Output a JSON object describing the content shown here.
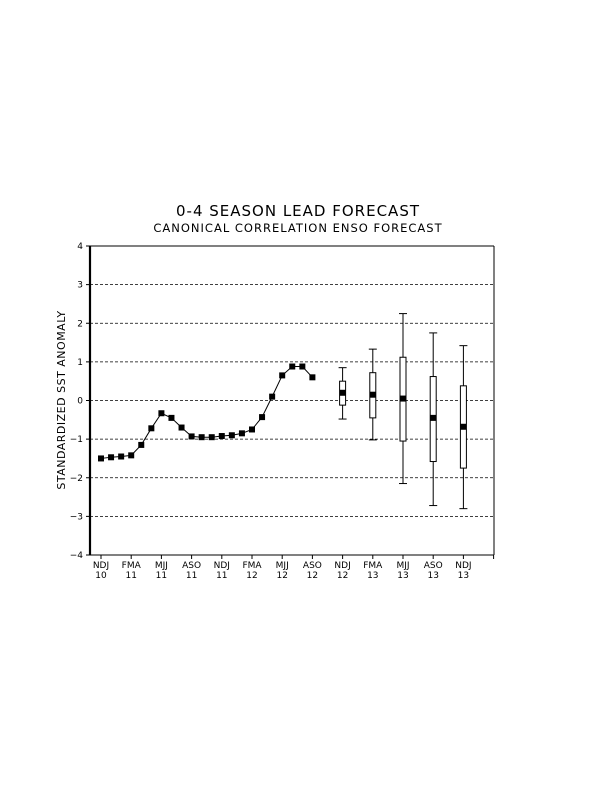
{
  "chart_data": {
    "type": "line",
    "title": "0-4 SEASON LEAD FORECAST",
    "subtitle": "CANONICAL CORRELATION ENSO FORECAST",
    "ylabel": "STANDARDIZED SST ANOMALY",
    "xlabel": "",
    "ylim": [
      -4,
      4
    ],
    "yticks": [
      -4,
      -3,
      -2,
      -1,
      0,
      1,
      2,
      3,
      4
    ],
    "grid": "horizontal dashed",
    "xticks": [
      {
        "season": "NDJ",
        "year": "10"
      },
      {
        "season": "FMA",
        "year": "11"
      },
      {
        "season": "MJJ",
        "year": "11"
      },
      {
        "season": "ASO",
        "year": "11"
      },
      {
        "season": "NDJ",
        "year": "11"
      },
      {
        "season": "FMA",
        "year": "12"
      },
      {
        "season": "MJJ",
        "year": "12"
      },
      {
        "season": "ASO",
        "year": "12"
      },
      {
        "season": "NDJ",
        "year": "12"
      },
      {
        "season": "FMA",
        "year": "13"
      },
      {
        "season": "MJJ",
        "year": "13"
      },
      {
        "season": "ASO",
        "year": "13"
      },
      {
        "season": "NDJ",
        "year": "13"
      }
    ],
    "observed": {
      "x": [
        0,
        0.333,
        0.667,
        1,
        1.333,
        1.667,
        2,
        2.333,
        2.667,
        3,
        3.333,
        3.667,
        4,
        4.333,
        4.667,
        5,
        5.333,
        5.667,
        6,
        6.333,
        6.667,
        7
      ],
      "y": [
        -1.5,
        -1.47,
        -1.45,
        -1.42,
        -1.15,
        -0.72,
        -0.33,
        -0.45,
        -0.7,
        -0.93,
        -0.95,
        -0.95,
        -0.92,
        -0.9,
        -0.85,
        -0.75,
        -0.43,
        0.1,
        0.65,
        0.88,
        0.88,
        0.6
      ]
    },
    "forecast": [
      {
        "x": 8,
        "value": 0.2,
        "box_low": -0.12,
        "box_high": 0.5,
        "whisker_low": -0.48,
        "whisker_high": 0.85
      },
      {
        "x": 9,
        "value": 0.15,
        "box_low": -0.45,
        "box_high": 0.72,
        "whisker_low": -1.02,
        "whisker_high": 1.33
      },
      {
        "x": 10,
        "value": 0.05,
        "box_low": -1.05,
        "box_high": 1.12,
        "whisker_low": -2.15,
        "whisker_high": 2.25
      },
      {
        "x": 11,
        "value": -0.45,
        "box_low": -1.58,
        "box_high": 0.62,
        "whisker_low": -2.72,
        "whisker_high": 1.75
      },
      {
        "x": 12,
        "value": -0.68,
        "box_low": -1.75,
        "box_high": 0.38,
        "whisker_low": -2.8,
        "whisker_high": 1.42
      }
    ]
  }
}
